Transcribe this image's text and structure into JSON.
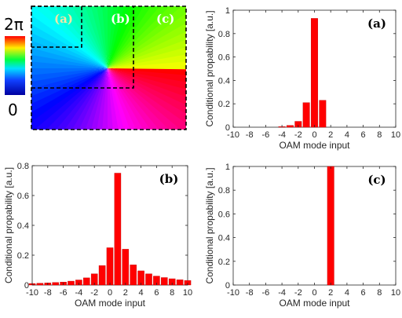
{
  "colorbar": {
    "max_label": "2π",
    "min_label": "0"
  },
  "phase_map": {
    "region_labels": [
      "(a)",
      "(b)",
      "(c)"
    ],
    "colors": {
      "region_a_label": "#f5e6a8",
      "region_bc_label": "#ffffff"
    }
  },
  "colors": {
    "bar": "#ff0000",
    "bar_edge": "#c00000",
    "axis": "#262626"
  },
  "chart_data": [
    {
      "type": "bar",
      "panel_label": "(a)",
      "xlabel": "OAM mode input",
      "ylabel": "Conditional propability [a.u.]",
      "xlim": [
        -10,
        10
      ],
      "ylim": [
        0,
        1
      ],
      "xticks": [
        -10,
        -8,
        -6,
        -4,
        -2,
        0,
        2,
        4,
        6,
        8,
        10
      ],
      "yticks": [
        0,
        0.2,
        0.4,
        0.6,
        0.8,
        1
      ],
      "ytick_labels": [
        "0",
        "0.2",
        "0.4",
        "0.6",
        "0.8",
        "1"
      ],
      "x": [
        -4,
        -3,
        -2,
        -1,
        0,
        1
      ],
      "values": [
        0.005,
        0.015,
        0.05,
        0.21,
        0.93,
        0.23
      ]
    },
    {
      "type": "bar",
      "panel_label": "(b)",
      "xlabel": "OAM mode input",
      "ylabel": "Conditional propability [a.u.]",
      "xlim": [
        -10,
        10
      ],
      "ylim": [
        0,
        0.8
      ],
      "xticks": [
        -10,
        -8,
        -6,
        -4,
        -2,
        0,
        2,
        4,
        6,
        8,
        10
      ],
      "yticks": [
        0,
        0.2,
        0.4,
        0.6,
        0.8
      ],
      "ytick_labels": [
        "0",
        "0.2",
        "0.4",
        "0.6",
        "0.8"
      ],
      "x": [
        -10,
        -9,
        -8,
        -7,
        -6,
        -5,
        -4,
        -3,
        -2,
        -1,
        0,
        1,
        2,
        3,
        4,
        5,
        6,
        7,
        8,
        9,
        10
      ],
      "values": [
        0.01,
        0.012,
        0.014,
        0.017,
        0.02,
        0.026,
        0.034,
        0.048,
        0.075,
        0.13,
        0.25,
        0.75,
        0.24,
        0.135,
        0.095,
        0.075,
        0.06,
        0.05,
        0.042,
        0.035,
        0.03
      ]
    },
    {
      "type": "bar",
      "panel_label": "(c)",
      "xlabel": "OAM mode input",
      "ylabel": "Conditional propability [a.u.]",
      "xlim": [
        -10,
        10
      ],
      "ylim": [
        0,
        1
      ],
      "xticks": [
        -10,
        -8,
        -6,
        -4,
        -2,
        0,
        2,
        4,
        6,
        8,
        10
      ],
      "yticks": [
        0,
        0.2,
        0.4,
        0.6,
        0.8,
        1
      ],
      "ytick_labels": [
        "0",
        "0.2",
        "0.4",
        "0.6",
        "0.8",
        "1"
      ],
      "x": [
        2
      ],
      "values": [
        1.0
      ]
    }
  ]
}
